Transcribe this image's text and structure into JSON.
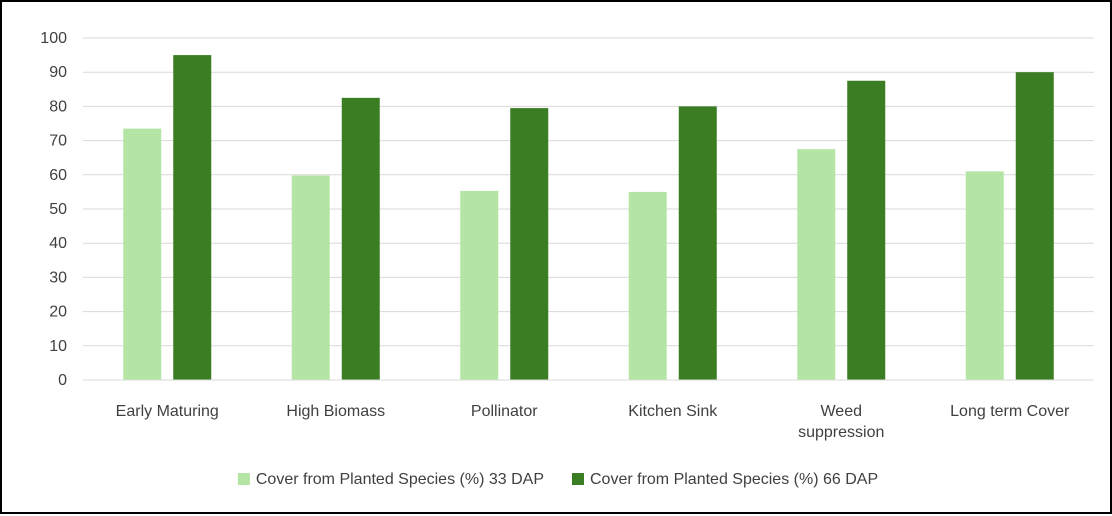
{
  "chart_data": {
    "type": "bar",
    "title": "",
    "xlabel": "",
    "ylabel": "",
    "categories": [
      [
        "Early Maturing"
      ],
      [
        "High Biomass"
      ],
      [
        "Pollinator"
      ],
      [
        "Kitchen Sink"
      ],
      [
        "Weed",
        "suppression"
      ],
      [
        "Long term Cover"
      ]
    ],
    "series": [
      {
        "name": "Cover from Planted Species (%) 33 DAP",
        "color": "#b5e5a4",
        "values": [
          73.5,
          59.8,
          55.3,
          55.0,
          67.5,
          61.0
        ]
      },
      {
        "name": "Cover from Planted Species (%) 66 DAP",
        "color": "#3a7d22",
        "values": [
          95.0,
          82.5,
          79.5,
          80.0,
          87.5,
          90.0
        ]
      }
    ],
    "ylim": [
      0,
      100
    ],
    "yticks": [
      0,
      10,
      20,
      30,
      40,
      50,
      60,
      70,
      80,
      90,
      100
    ],
    "grid": true,
    "grid_color": "#d9d9d9",
    "legend_position": "bottom"
  }
}
